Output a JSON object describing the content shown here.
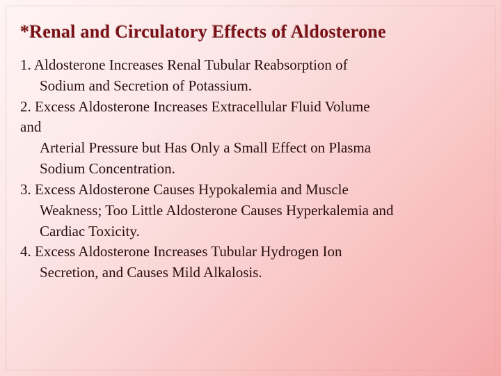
{
  "title": "*Renal and Circulatory Effects of Aldosterone",
  "lines": [
    {
      "text": "1. Aldosterone Increases Renal Tubular Reabsorption of",
      "indent": false
    },
    {
      "text": "Sodium and Secretion of Potassium.",
      "indent": true
    },
    {
      "text": "2. Excess Aldosterone Increases Extracellular Fluid Volume",
      "indent": false
    },
    {
      "text": "and",
      "indent": false
    },
    {
      "text": "Arterial Pressure but Has Only a Small Effect on Plasma",
      "indent": true
    },
    {
      "text": "Sodium Concentration.",
      "indent": true
    },
    {
      "text": "3. Excess Aldosterone Causes Hypokalemia and Muscle",
      "indent": false
    },
    {
      "text": "Weakness; Too Little Aldosterone Causes Hyperkalemia and",
      "indent": true
    },
    {
      "text": "Cardiac Toxicity.",
      "indent": true
    },
    {
      "text": "4. Excess Aldosterone Increases Tubular Hydrogen Ion",
      "indent": false
    },
    {
      "text": "Secretion, and Causes Mild Alkalosis.",
      "indent": true
    }
  ],
  "colors": {
    "title_color": "#7a1015",
    "text_color": "#2a1010",
    "bg_start": "#fef4f4",
    "bg_end": "#f5a8a8"
  },
  "typography": {
    "title_fontsize": 26,
    "body_fontsize": 21,
    "font_family": "Georgia"
  }
}
